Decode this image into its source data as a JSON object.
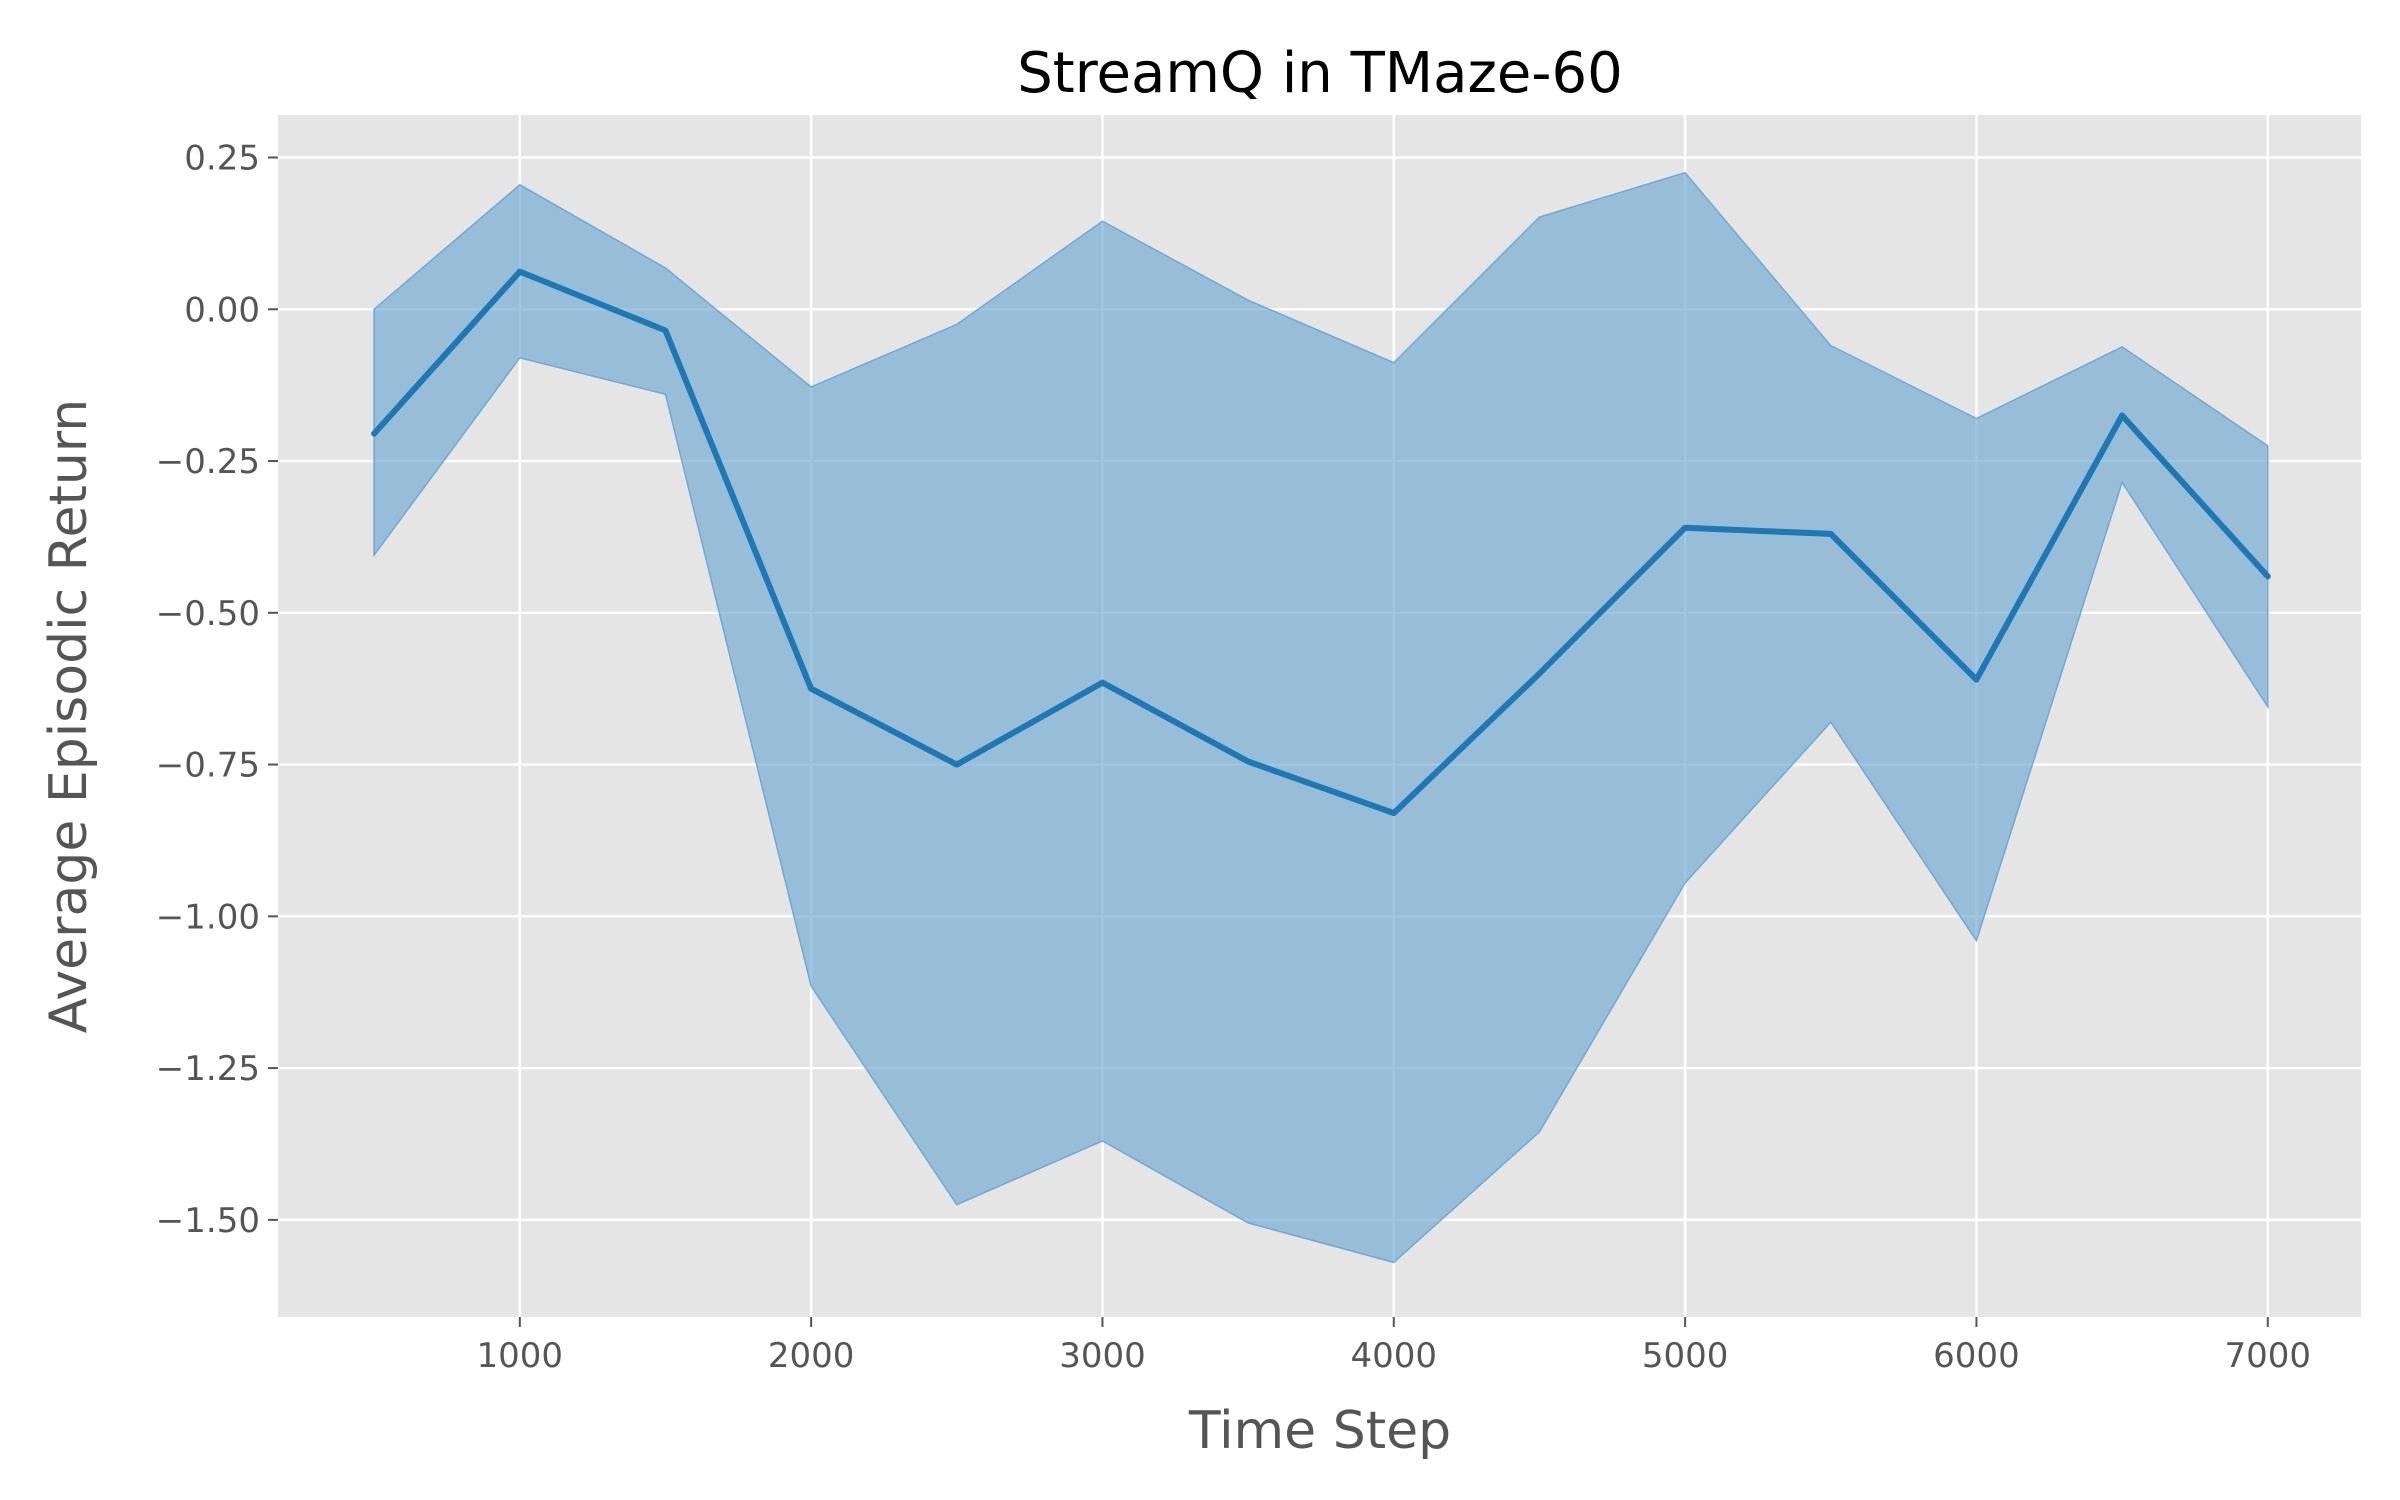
{
  "chart_data": {
    "type": "line",
    "title": "StreamQ in TMaze-60",
    "xlabel": "Time Step",
    "ylabel": "Average Episodic Return",
    "xlim": [
      170,
      7320
    ],
    "ylim": [
      -1.66,
      0.32
    ],
    "xticks": [
      1000,
      2000,
      3000,
      4000,
      5000,
      6000,
      7000
    ],
    "yticks": [
      0.25,
      0.0,
      -0.25,
      -0.5,
      -0.75,
      -1.0,
      -1.25,
      -1.5
    ],
    "xtick_labels": [
      "1000",
      "2000",
      "3000",
      "4000",
      "5000",
      "6000",
      "7000"
    ],
    "ytick_labels": [
      "0.25",
      "0.00",
      "−0.25",
      "−0.50",
      "−0.75",
      "−1.00",
      "−1.25",
      "−1.50"
    ],
    "grid": true,
    "series": [
      {
        "name": "StreamQ",
        "color": "#1f77b4",
        "band_color": "#6fa8d3",
        "x": [
          500,
          1000,
          1500,
          2000,
          2500,
          3000,
          3500,
          4000,
          4500,
          5000,
          5500,
          6000,
          6500,
          7000
        ],
        "mean": [
          -0.205,
          0.062,
          -0.035,
          -0.625,
          -0.75,
          -0.615,
          -0.745,
          -0.83,
          -0.6,
          -0.36,
          -0.37,
          -0.61,
          -0.175,
          -0.44
        ],
        "upper": [
          0.0,
          0.205,
          0.068,
          -0.128,
          -0.025,
          0.145,
          0.015,
          -0.088,
          0.152,
          0.225,
          -0.06,
          -0.18,
          -0.062,
          -0.225
        ],
        "lower": [
          -0.405,
          -0.08,
          -0.14,
          -1.115,
          -1.475,
          -1.37,
          -1.505,
          -1.57,
          -1.355,
          -0.945,
          -0.68,
          -1.04,
          -0.285,
          -0.655
        ]
      }
    ]
  }
}
